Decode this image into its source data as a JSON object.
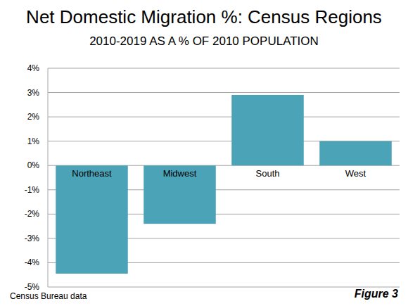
{
  "chart_data": {
    "type": "bar",
    "title": "Net Domestic Migration %: Census Regions",
    "subtitle": "2010-2019 AS A % OF 2010 POPULATION",
    "categories": [
      "Northeast",
      "Midwest",
      "South",
      "West"
    ],
    "values": [
      -4.45,
      -2.4,
      2.9,
      1.0
    ],
    "color": "#4ba3b8",
    "ylim": [
      -5,
      4
    ],
    "yticks": [
      {
        "value": -5,
        "label": "-5%"
      },
      {
        "value": -4,
        "label": "-4%"
      },
      {
        "value": -3,
        "label": "-3%"
      },
      {
        "value": -2,
        "label": "-2%"
      },
      {
        "value": -1,
        "label": "-1%"
      },
      {
        "value": 0,
        "label": "0%"
      },
      {
        "value": 1,
        "label": "1%"
      },
      {
        "value": 2,
        "label": "2%"
      },
      {
        "value": 3,
        "label": "3%"
      },
      {
        "value": 4,
        "label": "4%"
      }
    ],
    "grid": true,
    "annotations": [
      "Census Bureau data",
      "Figure 3"
    ]
  }
}
